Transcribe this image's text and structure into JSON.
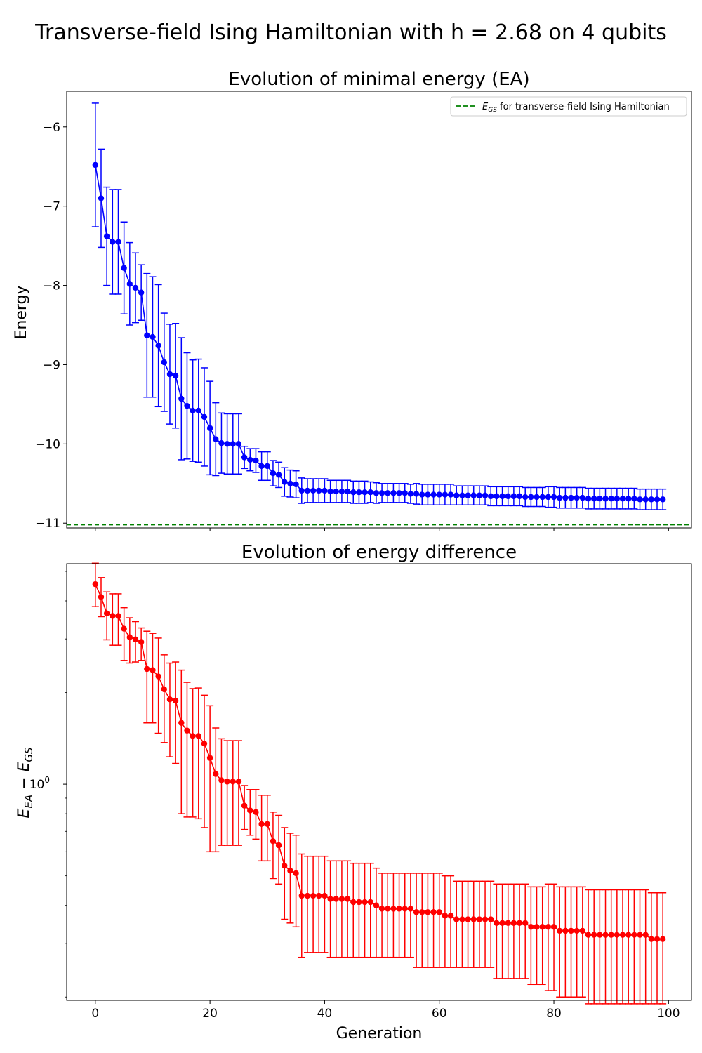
{
  "figure": {
    "suptitle": "Transverse-field Ising Hamiltonian with h = 2.68 on 4 qubits"
  },
  "chart_data": [
    {
      "type": "line",
      "title": "Evolution of minimal energy (EA)",
      "xlabel": "",
      "ylabel": "Energy",
      "xlim": [
        -5,
        104
      ],
      "ylim": [
        -11.06,
        -5.55
      ],
      "yscale": "linear",
      "yticks": [
        -11,
        -10,
        -9,
        -8,
        -7,
        -6
      ],
      "ytick_labels": [
        "−11",
        "−10",
        "−9",
        "−8",
        "−7",
        "−6"
      ],
      "xticks": [
        0,
        20,
        40,
        60,
        80,
        100
      ],
      "xtick_labels": [],
      "grid": false,
      "legend": "top-right",
      "reference_line": {
        "label": "E_GS for transverse-field Ising Hamiltonian",
        "y": -11.02,
        "color": "#008000",
        "style": "dashed"
      },
      "series": [
        {
          "color": "#0000ff",
          "x": [
            0,
            1,
            2,
            3,
            4,
            5,
            6,
            7,
            8,
            9,
            10,
            11,
            12,
            13,
            14,
            15,
            16,
            17,
            18,
            19,
            20,
            21,
            22,
            23,
            24,
            25,
            26,
            27,
            28,
            29,
            30,
            31,
            32,
            33,
            34,
            35,
            36,
            37,
            38,
            39,
            40,
            41,
            42,
            43,
            44,
            45,
            46,
            47,
            48,
            49,
            50,
            51,
            52,
            53,
            54,
            55,
            56,
            57,
            58,
            59,
            60,
            61,
            62,
            63,
            64,
            65,
            66,
            67,
            68,
            69,
            70,
            71,
            72,
            73,
            74,
            75,
            76,
            77,
            78,
            79,
            80,
            81,
            82,
            83,
            84,
            85,
            86,
            87,
            88,
            89,
            90,
            91,
            92,
            93,
            94,
            95,
            96,
            97,
            98,
            99
          ],
          "y": [
            -6.48,
            -6.9,
            -7.38,
            -7.45,
            -7.45,
            -7.78,
            -7.98,
            -8.03,
            -8.09,
            -8.63,
            -8.65,
            -8.76,
            -8.97,
            -9.12,
            -9.14,
            -9.43,
            -9.52,
            -9.58,
            -9.58,
            -9.66,
            -9.8,
            -9.94,
            -9.99,
            -10.0,
            -10.0,
            -10.0,
            -10.17,
            -10.2,
            -10.21,
            -10.28,
            -10.28,
            -10.37,
            -10.39,
            -10.48,
            -10.5,
            -10.51,
            -10.59,
            -10.59,
            -10.59,
            -10.59,
            -10.59,
            -10.6,
            -10.6,
            -10.6,
            -10.6,
            -10.61,
            -10.61,
            -10.61,
            -10.61,
            -10.62,
            -10.62,
            -10.62,
            -10.62,
            -10.62,
            -10.62,
            -10.63,
            -10.63,
            -10.64,
            -10.64,
            -10.64,
            -10.64,
            -10.64,
            -10.64,
            -10.65,
            -10.65,
            -10.65,
            -10.65,
            -10.65,
            -10.65,
            -10.66,
            -10.66,
            -10.66,
            -10.66,
            -10.66,
            -10.66,
            -10.67,
            -10.67,
            -10.67,
            -10.67,
            -10.67,
            -10.67,
            -10.68,
            -10.68,
            -10.68,
            -10.68,
            -10.68,
            -10.69,
            -10.69,
            -10.69,
            -10.69,
            -10.69,
            -10.69,
            -10.69,
            -10.69,
            -10.69,
            -10.7,
            -10.7,
            -10.7,
            -10.7,
            -10.7
          ],
          "yerr": [
            0.78,
            0.62,
            0.62,
            0.66,
            0.66,
            0.58,
            0.52,
            0.44,
            0.35,
            0.78,
            0.76,
            0.77,
            0.62,
            0.63,
            0.66,
            0.77,
            0.67,
            0.64,
            0.65,
            0.62,
            0.59,
            0.46,
            0.38,
            0.38,
            0.38,
            0.38,
            0.14,
            0.14,
            0.15,
            0.18,
            0.18,
            0.16,
            0.16,
            0.18,
            0.17,
            0.17,
            0.16,
            0.15,
            0.15,
            0.15,
            0.15,
            0.14,
            0.14,
            0.14,
            0.14,
            0.14,
            0.14,
            0.14,
            0.13,
            0.13,
            0.12,
            0.12,
            0.12,
            0.12,
            0.12,
            0.12,
            0.13,
            0.13,
            0.13,
            0.13,
            0.13,
            0.13,
            0.13,
            0.12,
            0.12,
            0.12,
            0.12,
            0.12,
            0.12,
            0.12,
            0.12,
            0.12,
            0.12,
            0.12,
            0.12,
            0.12,
            0.12,
            0.12,
            0.12,
            0.13,
            0.13,
            0.13,
            0.13,
            0.13,
            0.13,
            0.13,
            0.13,
            0.13,
            0.13,
            0.13,
            0.13,
            0.13,
            0.13,
            0.13,
            0.13,
            0.13,
            0.13,
            0.13,
            0.13,
            0.13
          ]
        }
      ]
    },
    {
      "type": "line",
      "title": "Evolution of energy difference",
      "xlabel": "Generation",
      "ylabel": "E_EA − E_GS",
      "xlim": [
        -5,
        104
      ],
      "ylim": [
        0.195,
        5.3
      ],
      "yscale": "log",
      "yticks": [
        1
      ],
      "ytick_labels": [
        "10",
        "0"
      ],
      "xticks": [
        0,
        20,
        40,
        60,
        80,
        100
      ],
      "xtick_labels": [
        "0",
        "20",
        "40",
        "60",
        "80",
        "100"
      ],
      "grid": false,
      "series": [
        {
          "color": "#ff0000",
          "x": [
            0,
            1,
            2,
            3,
            4,
            5,
            6,
            7,
            8,
            9,
            10,
            11,
            12,
            13,
            14,
            15,
            16,
            17,
            18,
            19,
            20,
            21,
            22,
            23,
            24,
            25,
            26,
            27,
            28,
            29,
            30,
            31,
            32,
            33,
            34,
            35,
            36,
            37,
            38,
            39,
            40,
            41,
            42,
            43,
            44,
            45,
            46,
            47,
            48,
            49,
            50,
            51,
            52,
            53,
            54,
            55,
            56,
            57,
            58,
            59,
            60,
            61,
            62,
            63,
            64,
            65,
            66,
            67,
            68,
            69,
            70,
            71,
            72,
            73,
            74,
            75,
            76,
            77,
            78,
            79,
            80,
            81,
            82,
            83,
            84,
            85,
            86,
            87,
            88,
            89,
            90,
            91,
            92,
            93,
            94,
            95,
            96,
            97,
            98,
            99
          ],
          "y": [
            4.54,
            4.12,
            3.64,
            3.57,
            3.57,
            3.24,
            3.04,
            2.99,
            2.93,
            2.39,
            2.37,
            2.26,
            2.05,
            1.9,
            1.88,
            1.59,
            1.5,
            1.44,
            1.44,
            1.36,
            1.22,
            1.08,
            1.03,
            1.02,
            1.02,
            1.02,
            0.85,
            0.82,
            0.81,
            0.74,
            0.74,
            0.65,
            0.63,
            0.54,
            0.52,
            0.51,
            0.43,
            0.43,
            0.43,
            0.43,
            0.43,
            0.42,
            0.42,
            0.42,
            0.42,
            0.41,
            0.41,
            0.41,
            0.41,
            0.4,
            0.39,
            0.39,
            0.39,
            0.39,
            0.39,
            0.39,
            0.38,
            0.38,
            0.38,
            0.38,
            0.38,
            0.37,
            0.37,
            0.36,
            0.36,
            0.36,
            0.36,
            0.36,
            0.36,
            0.36,
            0.35,
            0.35,
            0.35,
            0.35,
            0.35,
            0.35,
            0.34,
            0.34,
            0.34,
            0.34,
            0.34,
            0.33,
            0.33,
            0.33,
            0.33,
            0.33,
            0.32,
            0.32,
            0.32,
            0.32,
            0.32,
            0.32,
            0.32,
            0.32,
            0.32,
            0.32,
            0.32,
            0.31,
            0.31,
            0.31
          ],
          "yerr_low": [
            0.71,
            0.57,
            0.66,
            0.71,
            0.71,
            0.69,
            0.54,
            0.47,
            0.38,
            0.8,
            0.78,
            0.79,
            0.68,
            0.67,
            0.71,
            0.79,
            0.72,
            0.66,
            0.67,
            0.64,
            0.62,
            0.48,
            0.4,
            0.39,
            0.39,
            0.39,
            0.14,
            0.14,
            0.15,
            0.18,
            0.18,
            0.16,
            0.16,
            0.18,
            0.17,
            0.17,
            0.16,
            0.15,
            0.15,
            0.15,
            0.15,
            0.15,
            0.15,
            0.15,
            0.15,
            0.14,
            0.14,
            0.14,
            0.14,
            0.13,
            0.12,
            0.12,
            0.12,
            0.12,
            0.12,
            0.12,
            0.13,
            0.13,
            0.13,
            0.13,
            0.13,
            0.12,
            0.12,
            0.11,
            0.11,
            0.11,
            0.11,
            0.11,
            0.11,
            0.11,
            0.12,
            0.12,
            0.12,
            0.12,
            0.12,
            0.12,
            0.12,
            0.12,
            0.12,
            0.13,
            0.13,
            0.13,
            0.13,
            0.13,
            0.13,
            0.13,
            0.13,
            0.13,
            0.13,
            0.13,
            0.13,
            0.13,
            0.13,
            0.13,
            0.13,
            0.13,
            0.13,
            0.12,
            0.12,
            0.12
          ],
          "yerr_high": [
            0.78,
            0.65,
            0.64,
            0.65,
            0.65,
            0.56,
            0.48,
            0.43,
            0.33,
            0.79,
            0.76,
            0.76,
            0.61,
            0.6,
            0.64,
            0.78,
            0.66,
            0.62,
            0.63,
            0.6,
            0.59,
            0.45,
            0.38,
            0.37,
            0.37,
            0.37,
            0.14,
            0.14,
            0.15,
            0.18,
            0.18,
            0.16,
            0.16,
            0.18,
            0.17,
            0.17,
            0.16,
            0.15,
            0.15,
            0.15,
            0.15,
            0.14,
            0.14,
            0.14,
            0.14,
            0.14,
            0.14,
            0.14,
            0.14,
            0.13,
            0.12,
            0.12,
            0.12,
            0.12,
            0.12,
            0.12,
            0.13,
            0.13,
            0.13,
            0.13,
            0.13,
            0.13,
            0.13,
            0.12,
            0.12,
            0.12,
            0.12,
            0.12,
            0.12,
            0.12,
            0.12,
            0.12,
            0.12,
            0.12,
            0.12,
            0.12,
            0.12,
            0.12,
            0.12,
            0.13,
            0.13,
            0.13,
            0.13,
            0.13,
            0.13,
            0.13,
            0.13,
            0.13,
            0.13,
            0.13,
            0.13,
            0.13,
            0.13,
            0.13,
            0.13,
            0.13,
            0.13,
            0.13,
            0.13,
            0.13
          ]
        }
      ]
    }
  ]
}
